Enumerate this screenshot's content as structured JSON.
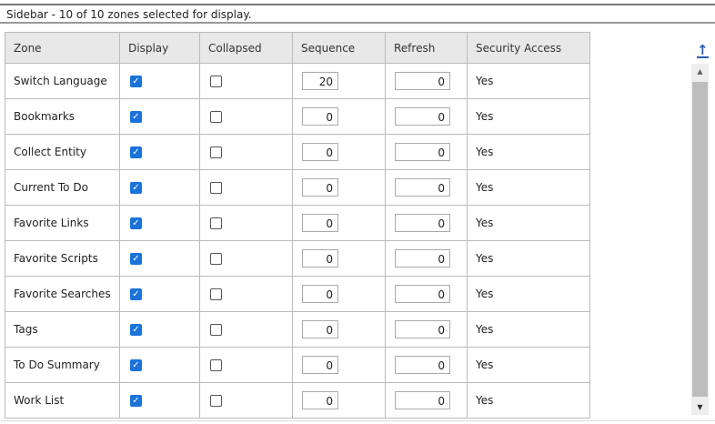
{
  "caption": "Sidebar - 10 of 10 zones selected for display.",
  "columns": [
    "Zone",
    "Display",
    "Collapsed",
    "Sequence",
    "Refresh",
    "Security Access"
  ],
  "rows": [
    {
      "zone": "Switch Language",
      "display": true,
      "collapsed": false,
      "sequence": "20",
      "refresh": "0",
      "security": "Yes"
    },
    {
      "zone": "Bookmarks",
      "display": true,
      "collapsed": false,
      "sequence": "0",
      "refresh": "0",
      "security": "Yes"
    },
    {
      "zone": "Collect Entity",
      "display": true,
      "collapsed": false,
      "sequence": "0",
      "refresh": "0",
      "security": "Yes"
    },
    {
      "zone": "Current To Do",
      "display": true,
      "collapsed": false,
      "sequence": "0",
      "refresh": "0",
      "security": "Yes"
    },
    {
      "zone": "Favorite Links",
      "display": true,
      "collapsed": false,
      "sequence": "0",
      "refresh": "0",
      "security": "Yes"
    },
    {
      "zone": "Favorite Scripts",
      "display": true,
      "collapsed": false,
      "sequence": "0",
      "refresh": "0",
      "security": "Yes"
    },
    {
      "zone": "Favorite Searches",
      "display": true,
      "collapsed": false,
      "sequence": "0",
      "refresh": "0",
      "security": "Yes"
    },
    {
      "zone": "Tags",
      "display": true,
      "collapsed": false,
      "sequence": "0",
      "refresh": "0",
      "security": "Yes"
    },
    {
      "zone": "To Do Summary",
      "display": true,
      "collapsed": false,
      "sequence": "0",
      "refresh": "0",
      "security": "Yes"
    },
    {
      "zone": "Work List",
      "display": true,
      "collapsed": false,
      "sequence": "0",
      "refresh": "0",
      "security": "Yes"
    }
  ],
  "icons": {
    "scroll_top": "arrow-up-to-top-icon"
  },
  "colors": {
    "accent": "#1a73d9",
    "link": "#2a5db0"
  }
}
